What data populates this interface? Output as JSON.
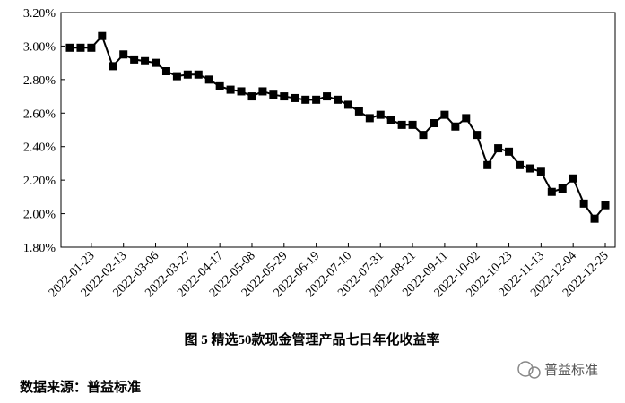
{
  "chart_data": {
    "type": "line",
    "title": "图 5   精选50款现金管理产品七日年化收益率",
    "source": "数据来源：普益标准",
    "watermark": "普益标准",
    "color": "#000000",
    "categories": [
      null,
      null,
      "2022-01-23",
      null,
      null,
      "2022-02-13",
      null,
      null,
      "2022-03-06",
      null,
      null,
      "2022-03-27",
      null,
      null,
      "2022-04-17",
      null,
      null,
      "2022-05-08",
      null,
      null,
      "2022-05-29",
      null,
      null,
      "2022-06-19",
      null,
      null,
      "2022-07-10",
      null,
      null,
      "2022-07-31",
      null,
      null,
      "2022-08-21",
      null,
      null,
      "2022-09-11",
      null,
      null,
      "2022-10-02",
      null,
      null,
      "2022-10-23",
      null,
      null,
      "2022-11-13",
      null,
      null,
      "2022-12-04",
      null,
      null,
      "2022-12-25"
    ],
    "values": [
      2.99,
      2.99,
      2.99,
      3.06,
      2.88,
      2.95,
      2.92,
      2.91,
      2.9,
      2.85,
      2.82,
      2.83,
      2.83,
      2.8,
      2.76,
      2.74,
      2.73,
      2.7,
      2.73,
      2.71,
      2.7,
      2.69,
      2.68,
      2.68,
      2.7,
      2.68,
      2.65,
      2.61,
      2.57,
      2.59,
      2.56,
      2.53,
      2.53,
      2.47,
      2.54,
      2.59,
      2.52,
      2.57,
      2.47,
      2.29,
      2.39,
      2.37,
      2.29,
      2.27,
      2.25,
      2.13,
      2.15,
      2.21,
      2.06,
      1.97,
      2.05
    ],
    "ylim": [
      1.8,
      3.2
    ],
    "yticks": [
      {
        "value": 1.8,
        "label": "1.80%"
      },
      {
        "value": 2.0,
        "label": "2.00%"
      },
      {
        "value": 2.2,
        "label": "2.20%"
      },
      {
        "value": 2.4,
        "label": "2.40%"
      },
      {
        "value": 2.6,
        "label": "2.60%"
      },
      {
        "value": 2.8,
        "label": "2.80%"
      },
      {
        "value": 3.0,
        "label": "3.00%"
      },
      {
        "value": 3.2,
        "label": "3.20%"
      }
    ]
  }
}
